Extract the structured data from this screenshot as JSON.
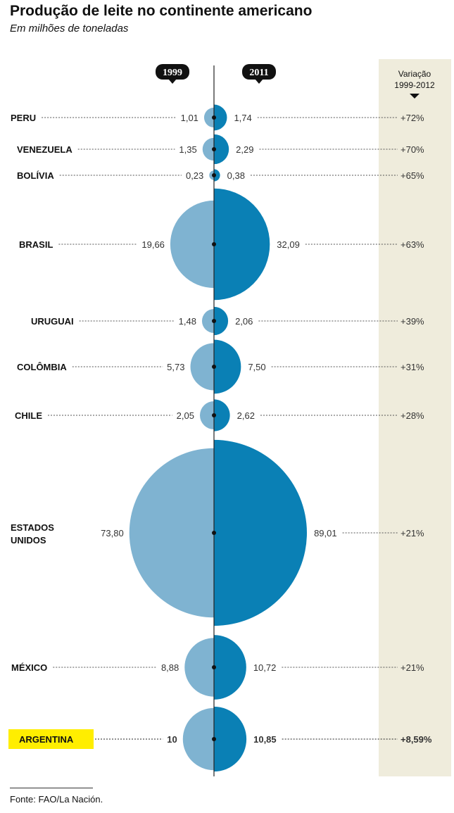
{
  "title": "Produção de leite no continente americano",
  "subtitle": "Em milhões de toneladas",
  "source": "Fonte: FAO/La Nación.",
  "chart_data": {
    "type": "bubble-comparison",
    "series": [
      {
        "name": "1999",
        "color": "#7fb3d1"
      },
      {
        "name": "2011",
        "color": "#0a80b5"
      }
    ],
    "variation_header": [
      "Variação",
      "1999-2012"
    ],
    "variation_column_color": "#efecdc",
    "highlight_color": "#ffee00",
    "rows": [
      {
        "country": [
          "PERU"
        ],
        "v1999": 1.01,
        "v2011": 1.74,
        "label1999": "1,01",
        "label2011": "1,74",
        "variation": "+72%"
      },
      {
        "country": [
          "VENEZUELA"
        ],
        "v1999": 1.35,
        "v2011": 2.29,
        "label1999": "1,35",
        "label2011": "2,29",
        "variation": "+70%"
      },
      {
        "country": [
          "BOLÍVIA"
        ],
        "v1999": 0.23,
        "v2011": 0.38,
        "label1999": "0,23",
        "label2011": "0,38",
        "variation": "+65%"
      },
      {
        "country": [
          "BRASIL"
        ],
        "v1999": 19.66,
        "v2011": 32.09,
        "label1999": "19,66",
        "label2011": "32,09",
        "variation": "+63%"
      },
      {
        "country": [
          "URUGUAI"
        ],
        "v1999": 1.48,
        "v2011": 2.06,
        "label1999": "1,48",
        "label2011": "2,06",
        "variation": "+39%"
      },
      {
        "country": [
          "COLÔMBIA"
        ],
        "v1999": 5.73,
        "v2011": 7.5,
        "label1999": "5,73",
        "label2011": "7,50",
        "variation": "+31%"
      },
      {
        "country": [
          "CHILE"
        ],
        "v1999": 2.05,
        "v2011": 2.62,
        "label1999": "2,05",
        "label2011": "2,62",
        "variation": "+28%"
      },
      {
        "country": [
          "ESTADOS",
          "UNIDOS"
        ],
        "v1999": 73.8,
        "v2011": 89.01,
        "label1999": "73,80",
        "label2011": "89,01",
        "variation": "+21%"
      },
      {
        "country": [
          "MÉXICO"
        ],
        "v1999": 8.88,
        "v2011": 10.72,
        "label1999": "8,88",
        "label2011": "10,72",
        "variation": "+21%"
      },
      {
        "country": [
          "ARGENTINA"
        ],
        "v1999": 10,
        "v2011": 10.85,
        "label1999": "10",
        "label2011": "10,85",
        "variation": "+8,59%",
        "highlight": true
      }
    ]
  }
}
